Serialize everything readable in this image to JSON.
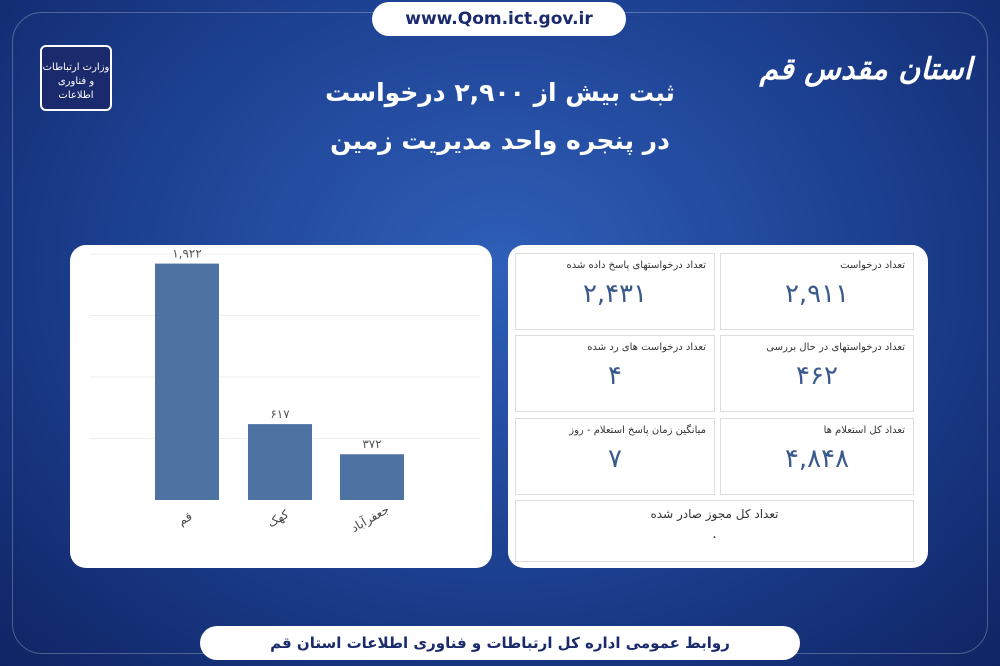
{
  "header": {
    "url": "www.Qom.ict.gov.ir",
    "brand": "استان مقدس قم",
    "ministry": "وزارت ارتباطات و فناوری اطلاعات",
    "title_line1": "ثبت بیش از ۲,۹۰۰ درخواست",
    "title_line2": "در پنجره واحد مدیریت زمین"
  },
  "chart_data": {
    "type": "bar",
    "categories": [
      "قم",
      "کهک",
      "جعفرآباد"
    ],
    "values": [
      1922,
      617,
      372
    ],
    "value_labels": [
      "۱,۹۲۲",
      "۶۱۷",
      "۳۷۲"
    ],
    "color": "#4e73a3",
    "ylim": [
      0,
      2000
    ]
  },
  "cards": [
    {
      "title": "تعداد درخواست",
      "value": "۲,۹۱۱"
    },
    {
      "title": "تعداد درخواستهای پاسخ داده شده",
      "value": "۲,۴۳۱"
    },
    {
      "title": "تعداد درخواستهای در حال بررسی",
      "value": "۴۶۲"
    },
    {
      "title": "تعداد درخواست های رد شده",
      "value": "۴"
    },
    {
      "title": "تعداد کل استعلام ها",
      "value": "۴,۸۴۸"
    },
    {
      "title": "میانگین زمان پاسخ استعلام - روز",
      "value": "۷"
    },
    {
      "title": "تعداد کل مجوز صادر شده",
      "value": "۰"
    }
  ],
  "footer": {
    "text": "روابط عمومی اداره کل ارتباطات و فناوری اطلاعات استان قم"
  }
}
